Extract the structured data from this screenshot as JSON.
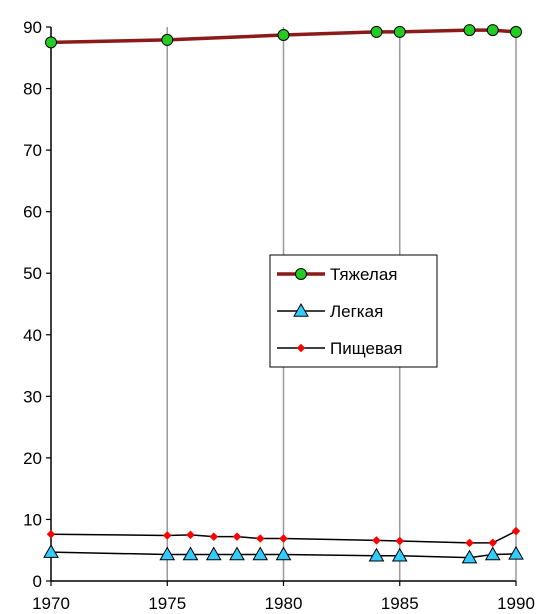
{
  "chart_data": {
    "type": "line",
    "title": "",
    "xlabel": "",
    "ylabel": "",
    "xlim": [
      1970,
      1990
    ],
    "ylim": [
      0,
      90
    ],
    "x_ticks": [
      1970,
      1975,
      1980,
      1985,
      1990
    ],
    "y_ticks": [
      0,
      10,
      20,
      30,
      40,
      50,
      60,
      70,
      80,
      90
    ],
    "grid": "vertical",
    "legend_position": "center-right",
    "series": [
      {
        "name": "Тяжелая",
        "color": "#8b1a1a",
        "marker": "circle",
        "marker_color": "#22cc22",
        "points": [
          [
            1970,
            87.5
          ],
          [
            1975,
            87.9
          ],
          [
            1980,
            88.7
          ],
          [
            1984,
            89.2
          ],
          [
            1985,
            89.2
          ],
          [
            1988,
            89.5
          ],
          [
            1989,
            89.5
          ],
          [
            1990,
            89.2
          ]
        ]
      },
      {
        "name": "Легкая",
        "color": "#000000",
        "marker": "triangle",
        "marker_color": "#33ccff",
        "points": [
          [
            1970,
            4.7
          ],
          [
            1975,
            4.3
          ],
          [
            1976,
            4.3
          ],
          [
            1977,
            4.3
          ],
          [
            1978,
            4.3
          ],
          [
            1979,
            4.3
          ],
          [
            1980,
            4.3
          ],
          [
            1984,
            4.1
          ],
          [
            1985,
            4.1
          ],
          [
            1988,
            3.8
          ],
          [
            1989,
            4.3
          ],
          [
            1990,
            4.4
          ]
        ]
      },
      {
        "name": "Пищевая",
        "color": "#000000",
        "marker": "diamond",
        "marker_color": "#ff0000",
        "points": [
          [
            1970,
            7.6
          ],
          [
            1975,
            7.4
          ],
          [
            1976,
            7.5
          ],
          [
            1977,
            7.2
          ],
          [
            1978,
            7.2
          ],
          [
            1979,
            6.9
          ],
          [
            1980,
            6.9
          ],
          [
            1984,
            6.6
          ],
          [
            1985,
            6.5
          ],
          [
            1988,
            6.2
          ],
          [
            1989,
            6.2
          ],
          [
            1990,
            8.1
          ]
        ]
      }
    ]
  }
}
